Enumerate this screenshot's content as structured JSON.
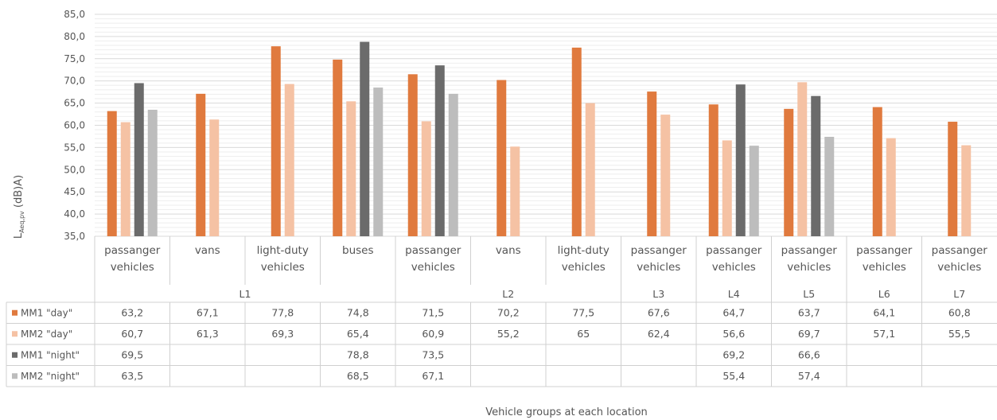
{
  "chart_data": {
    "type": "bar",
    "ylabel_main": "L",
    "ylabel_sub": "Aeq,pv",
    "ylabel_unit": " (dB)A)",
    "xlabel": "Vehicle groups at each location",
    "ylim": [
      35,
      85
    ],
    "yticks": [
      "35,0",
      "40,0",
      "45,0",
      "50,0",
      "55,0",
      "60,0",
      "65,0",
      "70,0",
      "75,0",
      "80,0",
      "85,0"
    ],
    "gridlines": true,
    "categories": [
      {
        "line1": "passanger",
        "line2": "vehicles"
      },
      {
        "line1": "vans",
        "line2": ""
      },
      {
        "line1": "light-duty",
        "line2": "vehicles"
      },
      {
        "line1": "buses",
        "line2": ""
      },
      {
        "line1": "passanger",
        "line2": "vehicles"
      },
      {
        "line1": "vans",
        "line2": ""
      },
      {
        "line1": "light-duty",
        "line2": "vehicles"
      },
      {
        "line1": "passanger",
        "line2": "vehicles"
      },
      {
        "line1": "passanger",
        "line2": "vehicles"
      },
      {
        "line1": "passanger",
        "line2": "vehicles"
      },
      {
        "line1": "passanger",
        "line2": "vehicles"
      },
      {
        "line1": "passanger",
        "line2": "vehicles"
      }
    ],
    "locations": [
      {
        "label": "L1",
        "start": 0,
        "end": 3
      },
      {
        "label": "L2",
        "start": 4,
        "end": 6
      },
      {
        "label": "L3",
        "start": 7,
        "end": 7
      },
      {
        "label": "L4",
        "start": 8,
        "end": 8
      },
      {
        "label": "L5",
        "start": 9,
        "end": 9
      },
      {
        "label": "L6",
        "start": 10,
        "end": 10
      },
      {
        "label": "L7",
        "start": 11,
        "end": 11
      }
    ],
    "series": [
      {
        "name": "MM1 \"day\"",
        "color": "#e07a3e",
        "values": [
          63.2,
          67.1,
          77.8,
          74.8,
          71.5,
          70.2,
          77.5,
          67.6,
          64.7,
          63.7,
          64.1,
          60.8
        ],
        "labels": [
          "63,2",
          "67,1",
          "77,8",
          "74,8",
          "71,5",
          "70,2",
          "77,5",
          "67,6",
          "64,7",
          "63,7",
          "64,1",
          "60,8"
        ]
      },
      {
        "name": "MM2 \"day\"",
        "color": "#f5c2a4",
        "values": [
          60.7,
          61.3,
          69.3,
          65.4,
          60.9,
          55.2,
          65,
          62.4,
          56.6,
          69.7,
          57.1,
          55.5
        ],
        "labels": [
          "60,7",
          "61,3",
          "69,3",
          "65,4",
          "60,9",
          "55,2",
          "65",
          "62,4",
          "56,6",
          "69,7",
          "57,1",
          "55,5"
        ]
      },
      {
        "name": "MM1 \"night\"",
        "color": "#6b6b6b",
        "values": [
          69.5,
          null,
          null,
          78.8,
          73.5,
          null,
          null,
          null,
          69.2,
          66.6,
          null,
          null
        ],
        "labels": [
          "69,5",
          "",
          "",
          "78,8",
          "73,5",
          "",
          "",
          "",
          "69,2",
          "66,6",
          "",
          ""
        ]
      },
      {
        "name": "MM2 \"night\"",
        "color": "#bdbdbd",
        "values": [
          63.5,
          null,
          null,
          68.5,
          67.1,
          null,
          null,
          null,
          55.4,
          57.4,
          null,
          null
        ],
        "labels": [
          "63,5",
          "",
          "",
          "68,5",
          "67,1",
          "",
          "",
          "",
          "55,4",
          "57,4",
          "",
          ""
        ]
      }
    ]
  }
}
